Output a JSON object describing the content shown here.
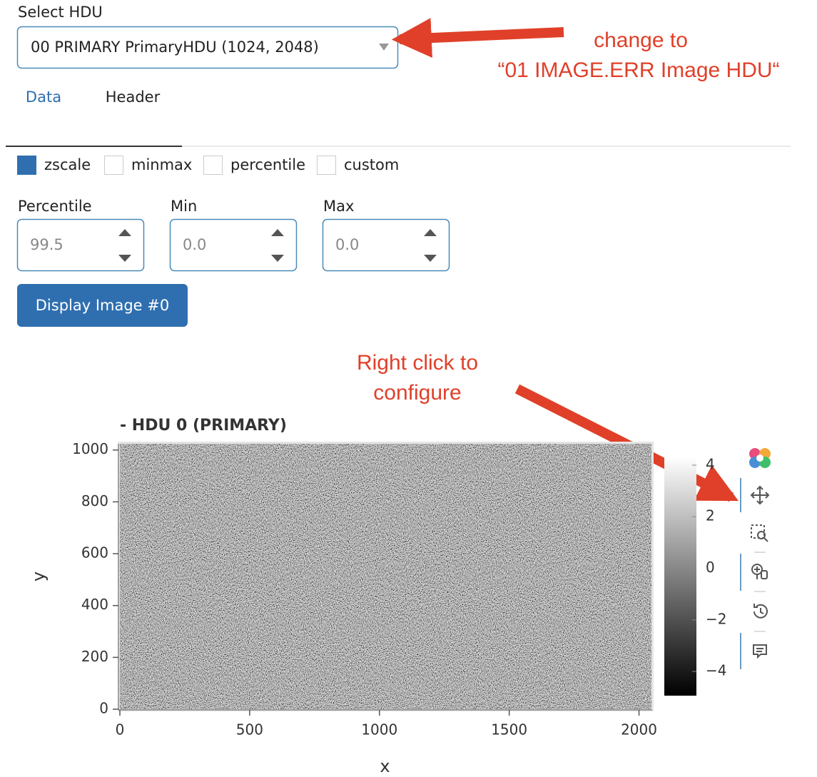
{
  "hdu_select": {
    "label": "Select HDU",
    "value": "00 PRIMARY PrimaryHDU (1024, 2048)"
  },
  "annotations": {
    "change_hint": [
      "change to",
      "“01 IMAGE.ERR Image HDU“"
    ],
    "configure_hint": [
      "Right click to",
      "configure"
    ]
  },
  "tabs": [
    "Data",
    "Header"
  ],
  "scale_options": [
    {
      "label": "zscale",
      "checked": true
    },
    {
      "label": "minmax",
      "checked": false
    },
    {
      "label": "percentile",
      "checked": false
    },
    {
      "label": "custom",
      "checked": false
    }
  ],
  "inputs": [
    {
      "label": "Percentile",
      "value": "99.5"
    },
    {
      "label": "Min",
      "value": "0.0"
    },
    {
      "label": "Max",
      "value": "0.0"
    }
  ],
  "button": "Display Image #0",
  "chart_data": {
    "type": "image",
    "title": "- HDU 0 (PRIMARY)",
    "x_label": "x",
    "y_label": "y",
    "xlim": [
      0,
      2048
    ],
    "ylim": [
      0,
      1024
    ],
    "xticks": [
      0,
      500,
      1000,
      1500,
      2000
    ],
    "yticks": [
      0,
      200,
      400,
      600,
      800,
      1000
    ],
    "colorbar": {
      "lim": [
        -4.94,
        4.33
      ],
      "ticks": [
        4,
        2,
        0,
        {
          "value": -2,
          "label": "−2"
        },
        {
          "value": -4,
          "label": "−4"
        }
      ]
    }
  }
}
